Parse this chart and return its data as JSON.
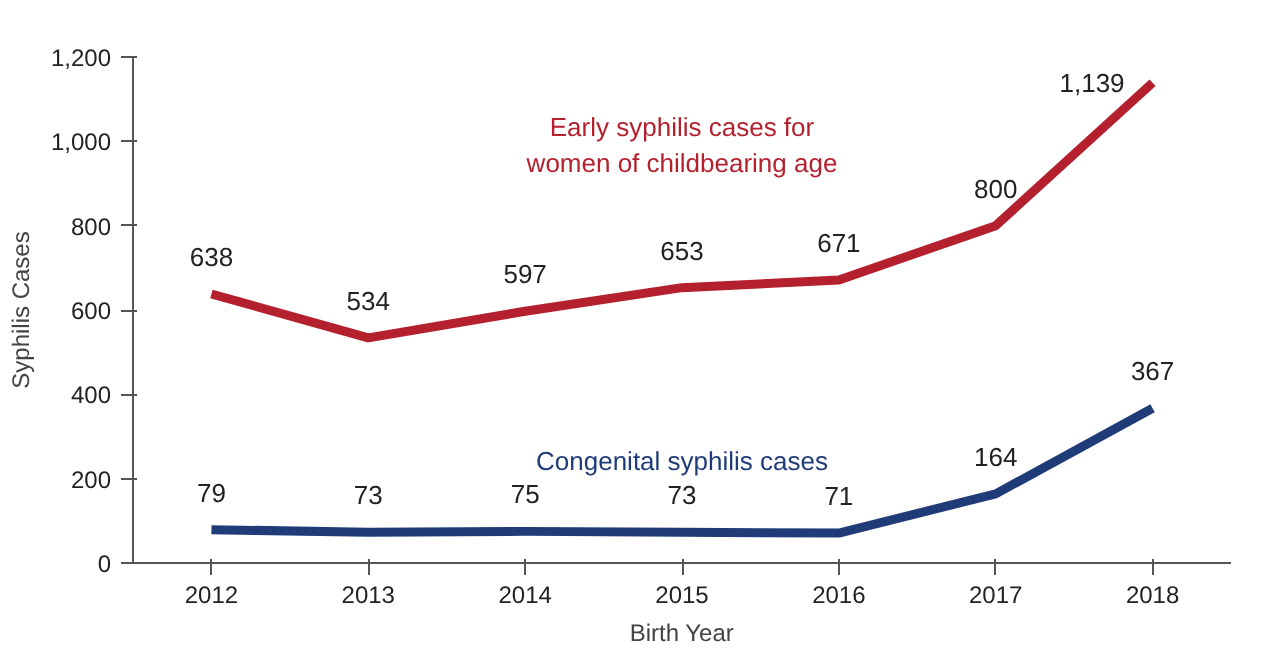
{
  "chart_data": {
    "type": "line",
    "xlabel": "Birth Year",
    "ylabel": "Syphilis Cases",
    "categories": [
      "2012",
      "2013",
      "2014",
      "2015",
      "2016",
      "2017",
      "2018"
    ],
    "ylim": [
      0,
      1200
    ],
    "yticks": [
      0,
      200,
      400,
      600,
      800,
      {
        "value": 1000,
        "label": "1,000"
      },
      {
        "value": 1200,
        "label": "1,200"
      }
    ],
    "grid": false,
    "marker": "none",
    "line_style": "solid",
    "series": [
      {
        "name": "Early syphilis cases for\nwomen of childbearing age",
        "color": "#b5202e",
        "values": [
          638,
          534,
          597,
          653,
          671,
          800,
          1139
        ],
        "value_labels": [
          "638",
          "534",
          "597",
          "653",
          "671",
          "800",
          "1,139"
        ]
      },
      {
        "name": "Congenital syphilis cases",
        "color": "#1f3c78",
        "values": [
          79,
          73,
          75,
          73,
          71,
          164,
          367
        ],
        "value_labels": [
          "79",
          "73",
          "75",
          "73",
          "71",
          "164",
          "367"
        ]
      }
    ]
  }
}
